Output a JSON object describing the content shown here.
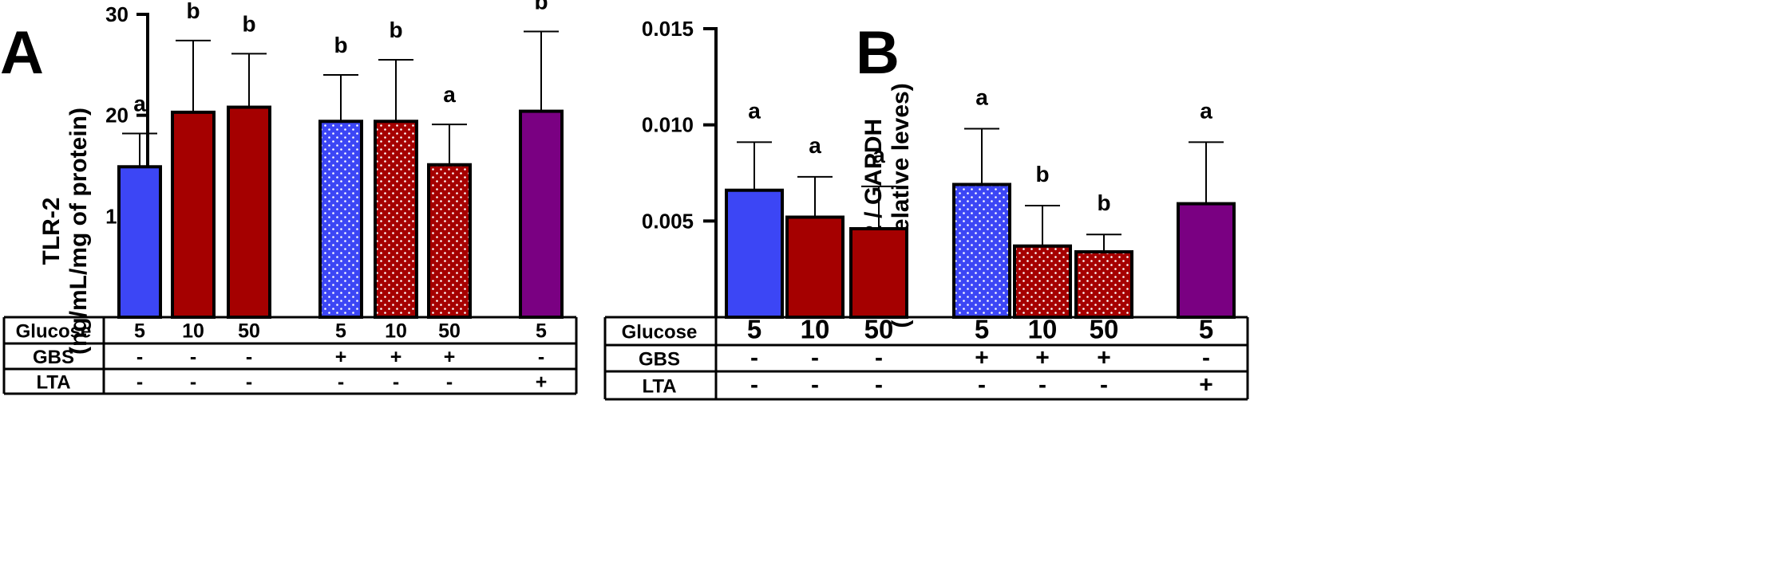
{
  "colors": {
    "blue": "#3c46f5",
    "red": "#a50000",
    "purple": "#7a0082",
    "dots": "#ffffff",
    "line": "#000000"
  },
  "chart_data": [
    {
      "type": "bar",
      "panel": "A",
      "ylabel_line1": "TLR-2",
      "ylabel_line2": "(ng/mL/mg of protein)",
      "ylim": [
        0,
        30
      ],
      "yticks": [
        "10",
        "20",
        "30"
      ],
      "ytick_values": [
        10,
        20,
        30
      ],
      "series": [
        {
          "name": "Glucose 5",
          "value": 14.9,
          "error": 3.3,
          "sig": "a",
          "color": "blue",
          "pattern": "solid"
        },
        {
          "name": "Glucose 10",
          "value": 20.3,
          "error": 7.1,
          "sig": "b",
          "color": "red",
          "pattern": "solid"
        },
        {
          "name": "Glucose 50",
          "value": 20.8,
          "error": 5.3,
          "sig": "b",
          "color": "red",
          "pattern": "solid"
        },
        {
          "name": "Glucose 5 + GBS",
          "value": 19.4,
          "error": 4.6,
          "sig": "b",
          "color": "blue",
          "pattern": "dotted"
        },
        {
          "name": "Glucose 10 + GBS",
          "value": 19.4,
          "error": 6.1,
          "sig": "b",
          "color": "red",
          "pattern": "dotted"
        },
        {
          "name": "Glucose 50 + GBS",
          "value": 15.1,
          "error": 4.0,
          "sig": "a",
          "color": "red",
          "pattern": "dotted"
        },
        {
          "name": "Glucose 5 + LTA",
          "value": 20.4,
          "error": 7.9,
          "sig": "b",
          "color": "purple",
          "pattern": "solid"
        }
      ],
      "table": {
        "rows": [
          {
            "label": "Glucose",
            "cells": [
              "5",
              "10",
              "50",
              "5",
              "10",
              "50",
              "5"
            ]
          },
          {
            "label": "GBS",
            "cells": [
              "-",
              "-",
              "-",
              "+",
              "+",
              "+",
              "-"
            ]
          },
          {
            "label": "LTA",
            "cells": [
              "-",
              "-",
              "-",
              "-",
              "-",
              "-",
              "+"
            ]
          }
        ]
      }
    },
    {
      "type": "bar",
      "panel": "B",
      "ylabel_line1": "TLR-2 / GAPDH",
      "ylabel_line2": "(mRNA relative leves)",
      "ylim": [
        0,
        0.015
      ],
      "yticks": [
        "0.005",
        "0.010",
        "0.015"
      ],
      "ytick_values": [
        0.005,
        0.01,
        0.015
      ],
      "series": [
        {
          "name": "Glucose 5",
          "value": 0.0066,
          "error": 0.0025,
          "sig": "a",
          "color": "blue",
          "pattern": "solid"
        },
        {
          "name": "Glucose 10",
          "value": 0.0052,
          "error": 0.0021,
          "sig": "a",
          "color": "red",
          "pattern": "solid"
        },
        {
          "name": "Glucose 50",
          "value": 0.0046,
          "error": 0.0022,
          "sig": "a",
          "color": "red",
          "pattern": "solid"
        },
        {
          "name": "Glucose 5 + GBS",
          "value": 0.0069,
          "error": 0.0029,
          "sig": "a",
          "color": "blue",
          "pattern": "dotted"
        },
        {
          "name": "Glucose 10 + GBS",
          "value": 0.0037,
          "error": 0.0021,
          "sig": "b",
          "color": "red",
          "pattern": "dotted"
        },
        {
          "name": "Glucose 50 + GBS",
          "value": 0.0034,
          "error": 0.0009,
          "sig": "b",
          "color": "red",
          "pattern": "dotted"
        },
        {
          "name": "Glucose 5 + LTA",
          "value": 0.0059,
          "error": 0.0032,
          "sig": "a",
          "color": "purple",
          "pattern": "solid"
        }
      ],
      "table": {
        "rows": [
          {
            "label": "Glucose",
            "cells": [
              "5",
              "10",
              "50",
              "5",
              "10",
              "50",
              "5"
            ]
          },
          {
            "label": "GBS",
            "cells": [
              "-",
              "-",
              "-",
              "+",
              "+",
              "+",
              "-"
            ]
          },
          {
            "label": "LTA",
            "cells": [
              "-",
              "-",
              "-",
              "-",
              "-",
              "-",
              "+"
            ]
          }
        ]
      }
    }
  ]
}
